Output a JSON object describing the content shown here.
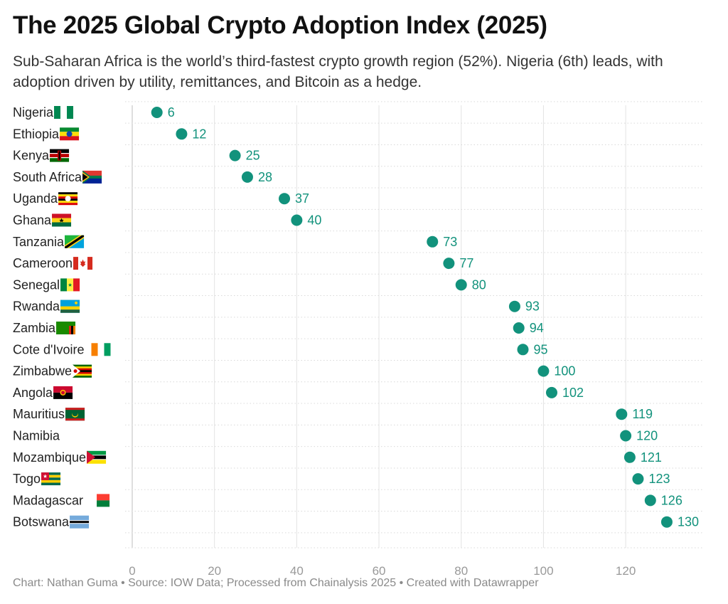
{
  "title": "The 2025 Global Crypto Adoption Index (2025)",
  "subtitle": "Sub-Saharan Africa is the world’s third-fastest crypto growth region (52%). Nigeria (6th) leads, with adoption driven by utility, remittances, and Bitcoin as a hedge.",
  "footer": "Chart: Nathan Guma  • Source: IOW Data; Processed from Chainalysis 2025 • Created with Datawrapper",
  "colors": {
    "dot": "#12927c",
    "grid": "#e3e3e3",
    "row_line": "#d9d9d9",
    "axis": "#bdbdbd"
  },
  "chart_data": {
    "type": "scatter",
    "categories": [
      "Nigeria",
      "Ethiopia",
      "Kenya",
      "South Africa",
      "Uganda",
      "Ghana",
      "Tanzania",
      "Cameroon",
      "Senegal",
      "Rwanda",
      "Zambia",
      "Cote d'Ivoire",
      "Zimbabwe",
      "Angola",
      "Mauritius",
      "Namibia",
      "Mozambique",
      "Togo",
      "Madagascar",
      "Botswana"
    ],
    "values": [
      6,
      12,
      25,
      28,
      37,
      40,
      73,
      77,
      80,
      93,
      94,
      95,
      100,
      102,
      119,
      120,
      121,
      123,
      126,
      130
    ],
    "flags": [
      "nigeria-flag-icon",
      "ethiopia-flag-icon",
      "kenya-flag-icon",
      "south-africa-flag-icon",
      "uganda-flag-icon",
      "ghana-flag-icon",
      "tanzania-flag-icon",
      "canada-flag-icon",
      "senegal-flag-icon",
      "rwanda-flag-icon",
      "zambia-flag-icon",
      "cote-divoire-flag-icon",
      "zimbabwe-flag-icon",
      "angola-flag-icon",
      "mauritania-flag-icon",
      "",
      "mozambique-flag-icon",
      "togo-flag-icon",
      "madagascar-flag-icon",
      "botswana-flag-icon"
    ],
    "xticks": [
      0,
      20,
      40,
      60,
      80,
      100,
      120
    ],
    "xlim": [
      0,
      139
    ],
    "grid": true
  }
}
